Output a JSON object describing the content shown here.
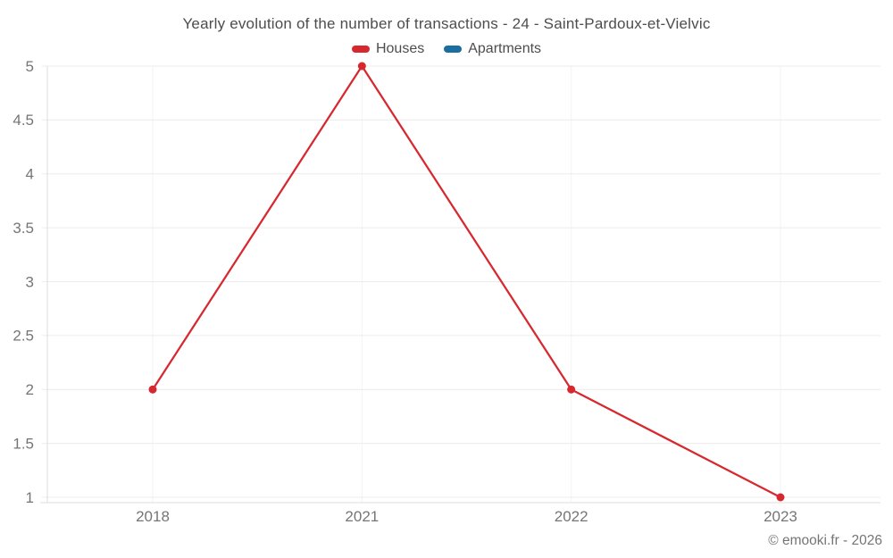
{
  "title": "Yearly evolution of the number of transactions - 24 - Saint-Pardoux-et-Vielvic",
  "footer": "© emooki.fr - 2026",
  "legend": [
    {
      "label": "Houses",
      "color": "#d7282f"
    },
    {
      "label": "Apartments",
      "color": "#1a6fa0"
    }
  ],
  "colors": {
    "houses": "#d7282f",
    "apartments": "#1a6fa0",
    "y_gridline": "#ececec",
    "x_gridline": "#f3f3f3",
    "axis_line": "#dcdcdc",
    "tick_label": "#757575",
    "title_text": "#4d4d4d"
  },
  "chart_data": {
    "type": "line",
    "title": "Yearly evolution of the number of transactions - 24 - Saint-Pardoux-et-Vielvic",
    "xlabel": "",
    "ylabel": "",
    "categories": [
      "2018",
      "2021",
      "2022",
      "2023"
    ],
    "series": [
      {
        "name": "Houses",
        "color": "#d7282f",
        "values": [
          2,
          5,
          2,
          1
        ]
      },
      {
        "name": "Apartments",
        "color": "#1a6fa0",
        "values": []
      }
    ],
    "ylim": [
      1,
      5
    ],
    "yticks": [
      1,
      1.5,
      2,
      2.5,
      3,
      3.5,
      4,
      4.5,
      5
    ],
    "grid": true,
    "legend_position": "top",
    "marker_radius": 4.5,
    "line_width": 2.25
  }
}
